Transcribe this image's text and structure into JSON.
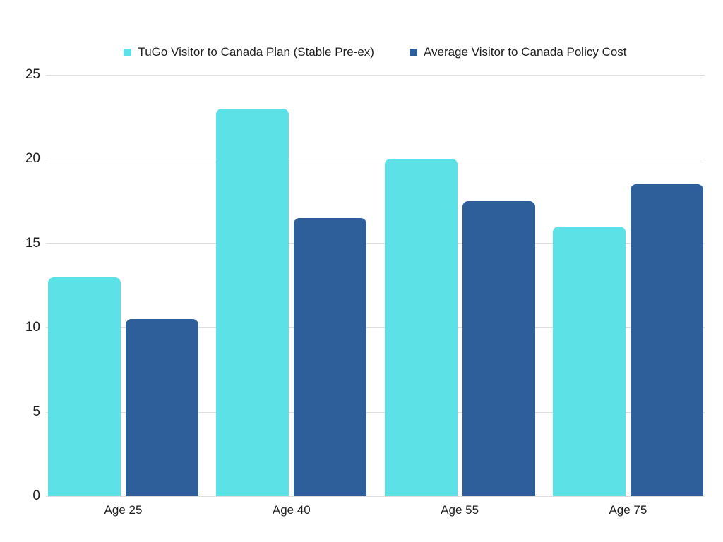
{
  "colors": {
    "background": "#ffffff",
    "gridline": "#dedede",
    "text": "#1f1f1f",
    "series_tugo": "#5CE1E6",
    "series_average": "#2E5F9A"
  },
  "legend": {
    "items": [
      {
        "label": "TuGo Visitor to Canada Plan (Stable Pre-ex)",
        "color": "#5CE1E6"
      },
      {
        "label": "Average Visitor to Canada Policy Cost",
        "color": "#2E5F9A"
      }
    ]
  },
  "chart_data": {
    "type": "bar",
    "categories": [
      "Age 25",
      "Age 40",
      "Age 55",
      "Age 75"
    ],
    "series": [
      {
        "name": "TuGo Visitor to Canada Plan (Stable Pre-ex)",
        "color": "#5CE1E6",
        "values": [
          13,
          23,
          20,
          16
        ]
      },
      {
        "name": "Average Visitor to Canada Policy Cost",
        "color": "#2E5F9A",
        "values": [
          10.5,
          16.5,
          17.5,
          18.5
        ]
      }
    ],
    "yticks": [
      0,
      5,
      10,
      15,
      20,
      25
    ],
    "ytick_labels": [
      "0",
      "5",
      "10",
      "15",
      "20",
      "25"
    ],
    "ylim": [
      0,
      25
    ],
    "grid": true,
    "legend_position": "top",
    "xlabel": "",
    "ylabel": ""
  }
}
